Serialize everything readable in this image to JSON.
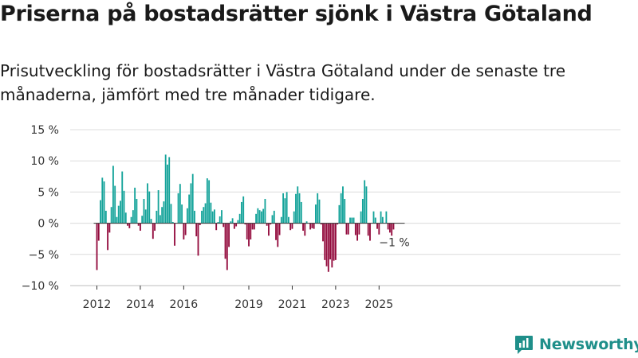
{
  "chart_data": {
    "type": "bar",
    "title": "Priserna på bostadsrätter sjönk i Västra Götaland",
    "subtitle": "Prisutveckling för bostadsrätter i Västra Götaland under de senaste tre månaderna, jämfört med tre månader tidigare.",
    "xlabel": "",
    "ylabel": "",
    "ylim": [
      -10,
      15
    ],
    "yticks": [
      15,
      10,
      5,
      0,
      -5,
      -10
    ],
    "ytick_labels": [
      "15 %",
      "10 %",
      "5 %",
      "0 %",
      "−5 %",
      "−10 %"
    ],
    "xticks": [
      {
        "label": "2012",
        "index": 0
      },
      {
        "label": "2014",
        "index": 24
      },
      {
        "label": "2016",
        "index": 48
      },
      {
        "label": "2019",
        "index": 84
      },
      {
        "label": "2021",
        "index": 108
      },
      {
        "label": "2023",
        "index": 132
      },
      {
        "label": "2025",
        "index": 156
      }
    ],
    "start": "2012-01",
    "frequency": "monthly",
    "values": [
      -7.5,
      -2.8,
      3.7,
      7.3,
      6.7,
      2.0,
      -4.3,
      -1.5,
      2.6,
      9.2,
      6.0,
      1.0,
      2.8,
      3.6,
      8.3,
      5.2,
      1.7,
      -0.4,
      -0.8,
      1.0,
      2.1,
      5.7,
      3.9,
      -0.4,
      -1.2,
      1.2,
      3.9,
      2.2,
      6.4,
      5.1,
      0.7,
      -2.5,
      -1.2,
      2.0,
      5.3,
      1.3,
      2.6,
      3.5,
      11.0,
      9.4,
      10.6,
      3.1,
      0.2,
      -3.6,
      0.0,
      4.8,
      6.3,
      3.0,
      -2.6,
      -1.9,
      2.4,
      4.6,
      6.4,
      7.9,
      2.0,
      -2.1,
      -5.2,
      -0.3,
      2.0,
      2.6,
      3.2,
      7.2,
      6.9,
      3.3,
      1.9,
      2.2,
      -1.1,
      0.2,
      1.1,
      2.1,
      -0.6,
      -5.7,
      -7.5,
      -3.8,
      0.3,
      0.8,
      -0.9,
      -0.5,
      0.5,
      1.5,
      3.4,
      4.3,
      -0.2,
      -2.6,
      -3.7,
      -2.6,
      -1.0,
      -1.0,
      1.5,
      2.4,
      2.1,
      1.9,
      2.3,
      3.9,
      -0.4,
      -2.0,
      -0.2,
      1.3,
      2.0,
      -2.7,
      -3.8,
      -1.9,
      1.0,
      4.8,
      4.0,
      5.0,
      1.0,
      -1.1,
      -0.9,
      1.9,
      4.7,
      5.9,
      4.8,
      3.4,
      -1.2,
      -2.0,
      0.3,
      0.0,
      -1.0,
      -0.8,
      -0.9,
      3.0,
      4.8,
      3.8,
      -0.2,
      -2.9,
      -5.9,
      -6.9,
      -7.8,
      -5.8,
      -7.1,
      -6.0,
      -5.9,
      -0.2,
      2.9,
      4.8,
      5.9,
      3.9,
      -1.8,
      -1.8,
      0.9,
      0.9,
      0.9,
      -1.9,
      -2.8,
      -1.8,
      1.9,
      3.9,
      6.9,
      5.9,
      -2.0,
      -2.8,
      0.0,
      1.9,
      0.9,
      -0.9,
      -1.8,
      1.9,
      1.0,
      0.0,
      1.9,
      -1.0,
      -1.5,
      -2.0,
      -1.0
    ],
    "positive_color": "#14a39a",
    "negative_color": "#930b3d",
    "annotation": {
      "text": "−1 %",
      "index": 164
    }
  },
  "brand": {
    "name": "Newsworthy",
    "icon": "newsworthy-logo-icon",
    "color": "#1f8f8a"
  }
}
